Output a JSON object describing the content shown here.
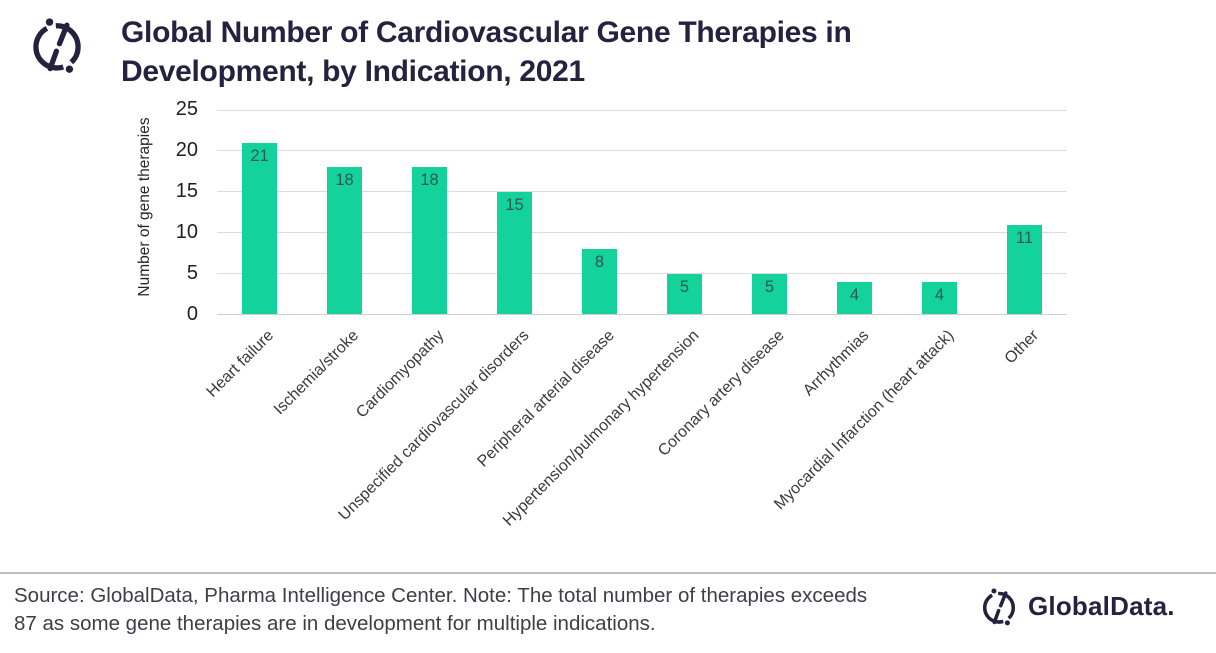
{
  "header": {
    "title": "Global Number of Cardiovascular Gene Therapies in\nDevelopment, by Indication, 2021"
  },
  "chart_data": {
    "type": "bar",
    "title": "Global Number of Cardiovascular Gene Therapies in Development, by Indication, 2021",
    "categories": [
      "Heart failure",
      "Ischemia/stroke",
      "Cardiomyopathy",
      "Unspecified cardiovascular disorders",
      "Peripheral arterial disease",
      "Hypertension/pulmonary hypertension",
      "Coronary artery disease",
      "Arrhythmias",
      "Myocardial Infarction (heart attack)",
      "Other"
    ],
    "values": [
      21,
      18,
      18,
      15,
      8,
      5,
      5,
      4,
      4,
      11
    ],
    "xlabel": "",
    "ylabel": "Number of gene therapies",
    "ylim": [
      0,
      25
    ],
    "yticks": [
      0,
      5,
      10,
      15,
      20,
      25
    ],
    "grid": true,
    "legend": "none",
    "bar_color": "#14d29c",
    "value_label_color": "#32584f"
  },
  "footer": {
    "source_note": "Source: GlobalData, Pharma Intelligence Center. Note: The total number of therapies exceeds\n87 as some gene therapies are in development for multiple indications.",
    "brand": "GlobalData."
  }
}
